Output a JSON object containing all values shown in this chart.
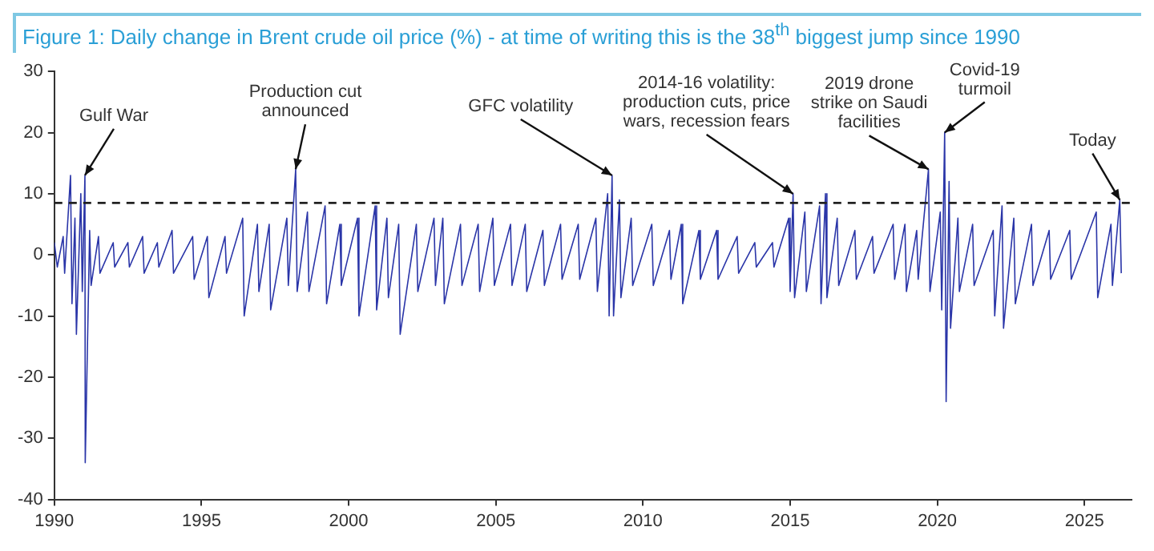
{
  "chart_data": {
    "type": "line",
    "title": "Figure 1: Daily change in Brent crude oil price (%) - at time of writing this is the 38$^{th}$ biggest jump since 1990",
    "xlim": [
      1990,
      2026.6
    ],
    "xticks": [
      1990,
      1995,
      2000,
      2005,
      2010,
      2015,
      2020,
      2025
    ],
    "ylim": [
      -40,
      30
    ],
    "yticks": [
      -40,
      -30,
      -20,
      -10,
      0,
      10,
      20,
      30
    ],
    "grid": false,
    "legend": false,
    "marker": "none",
    "line_style": "solid",
    "ref_lines": [
      {
        "axis": "y",
        "value": 8.5,
        "color": "#222222",
        "line_style": "dashed"
      }
    ],
    "annotations": [
      {
        "text": "Gulf War",
        "x": 1991.04,
        "y": 13
      },
      {
        "text": "Production cut announced",
        "x": 1998.2,
        "y": 14
      },
      {
        "text": "GFC volatility",
        "x": 2008.95,
        "y": 13
      },
      {
        "text": "2014-16 volatility: production cuts, price wars, recession fears",
        "x": 2015.1,
        "y": 10
      },
      {
        "text": "2019 drone strike on Saudi facilities",
        "x": 2019.7,
        "y": 14
      },
      {
        "text": "Covid-19 turmoil",
        "x": 2020.25,
        "y": 20
      },
      {
        "text": "Today",
        "x": 2026.2,
        "y": 9
      }
    ],
    "series": [
      {
        "color": "#2a35a8",
        "x": [
          1990.0,
          1990.1,
          1990.3,
          1990.35,
          1990.55,
          1990.6,
          1990.7,
          1990.75,
          1990.9,
          1990.95,
          1991.04,
          1991.05,
          1991.2,
          1991.25,
          1991.5,
          1991.55,
          1992,
          1992.05,
          1992.5,
          1992.55,
          1993,
          1993.05,
          1993.5,
          1993.55,
          1994,
          1994.05,
          1994.7,
          1994.75,
          1995.2,
          1995.25,
          1995.8,
          1995.85,
          1996.4,
          1996.45,
          1996.9,
          1996.95,
          1997.3,
          1997.35,
          1997.9,
          1997.95,
          1998.2,
          1998.25,
          1998.6,
          1998.65,
          1999.2,
          1999.25,
          1999.7,
          1999.75,
          2000.3,
          2000.35,
          2000.9,
          2000.95,
          2001.3,
          2001.35,
          2001.7,
          2001.75,
          2002.3,
          2002.35,
          2002.9,
          2002.95,
          2003.2,
          2003.25,
          2003.8,
          2003.85,
          2004.4,
          2004.45,
          2004.9,
          2004.95,
          2005.5,
          2005.55,
          2006,
          2006.05,
          2006.6,
          2006.65,
          2007.2,
          2007.25,
          2007.8,
          2007.85,
          2008.4,
          2008.45,
          2008.8,
          2008.85,
          2008.95,
          2009.0,
          2009.2,
          2009.25,
          2009.6,
          2009.65,
          2010.3,
          2010.35,
          2010.9,
          2010.95,
          2011.3,
          2011.35,
          2011.9,
          2011.95,
          2012.5,
          2012.55,
          2013.2,
          2013.25,
          2013.8,
          2013.85,
          2014.4,
          2014.45,
          2014.95,
          2015.0,
          2015.1,
          2015.15,
          2015.5,
          2015.55,
          2016.0,
          2016.05,
          2016.2,
          2016.25,
          2016.6,
          2016.65,
          2017.2,
          2017.25,
          2017.8,
          2017.85,
          2018.5,
          2018.55,
          2018.9,
          2018.95,
          2019.3,
          2019.35,
          2019.7,
          2019.75,
          2020.1,
          2020.15,
          2020.25,
          2020.3,
          2020.4,
          2020.45,
          2020.7,
          2020.75,
          2021.2,
          2021.25,
          2021.9,
          2021.95,
          2022.2,
          2022.25,
          2022.6,
          2022.65,
          2023.2,
          2023.25,
          2023.8,
          2023.85,
          2024.5,
          2024.55,
          2025.4,
          2025.45,
          2025.9,
          2025.95,
          2026.2,
          2026.25
        ],
        "values": [
          2,
          -2,
          3,
          -3,
          13,
          -8,
          6,
          -13,
          10,
          -6,
          13,
          -34,
          4,
          -5,
          3,
          -3,
          2,
          -2,
          2,
          -2,
          3,
          -3,
          2,
          -2,
          4,
          -3,
          3,
          -4,
          3,
          -7,
          3,
          -3,
          6,
          -10,
          5,
          -6,
          5,
          -9,
          6,
          -5,
          14,
          -6,
          7,
          -6,
          8,
          -8,
          5,
          -5,
          6,
          -10,
          8,
          -9,
          6,
          -7,
          5,
          -13,
          5,
          -6,
          6,
          -5,
          6,
          -8,
          5,
          -5,
          5,
          -6,
          6,
          -5,
          5,
          -5,
          5,
          -6,
          4,
          -5,
          5,
          -4,
          5,
          -4,
          6,
          -6,
          10,
          -10,
          13,
          -10,
          9,
          -7,
          6,
          -5,
          5,
          -5,
          4,
          -4,
          5,
          -8,
          4,
          -4,
          4,
          -4,
          3,
          -3,
          2,
          -2,
          2,
          -2,
          6,
          -6,
          10,
          -7,
          7,
          -6,
          8,
          -8,
          10,
          -7,
          6,
          -5,
          4,
          -4,
          3,
          -3,
          5,
          -4,
          5,
          -6,
          4,
          -4,
          14,
          -6,
          7,
          -9,
          20,
          -24,
          12,
          -12,
          6,
          -6,
          5,
          -5,
          4,
          -10,
          8,
          -12,
          6,
          -8,
          5,
          -5,
          4,
          -4,
          4,
          -4,
          7,
          -7,
          5,
          -5,
          9,
          -3
        ]
      }
    ]
  }
}
